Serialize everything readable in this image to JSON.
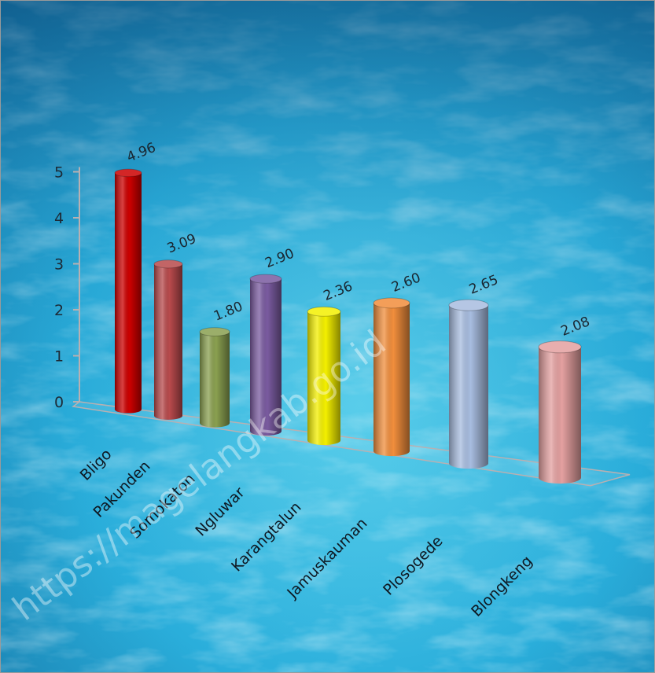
{
  "watermark": "https://magelangkab.go.id",
  "chart_data": {
    "type": "bar",
    "style": "3d-cylinder",
    "categories": [
      "Bligo",
      "Pakunden",
      "Somokaton",
      "Ngluwar",
      "Karangtalun",
      "Jamuskauman",
      "Plosogede",
      "Blongkeng"
    ],
    "values": [
      4.96,
      3.09,
      1.8,
      2.9,
      2.36,
      2.6,
      2.65,
      2.08
    ],
    "value_labels": [
      "4.96",
      "3.09",
      "1.80",
      "2.90",
      "2.36",
      "2.60",
      "2.65",
      "2.08"
    ],
    "yticks": [
      "0",
      "1",
      "2",
      "3",
      "4",
      "5"
    ],
    "ylim": [
      0,
      5
    ],
    "title": "",
    "xlabel": "",
    "ylabel": "",
    "grid": false,
    "legend": "none",
    "colors": [
      "#cc0000",
      "#b84a4c",
      "#8aa050",
      "#7a5ba0",
      "#f4f000",
      "#f18e3c",
      "#a8bde0",
      "#e4a0a0"
    ],
    "background": "water texture"
  }
}
